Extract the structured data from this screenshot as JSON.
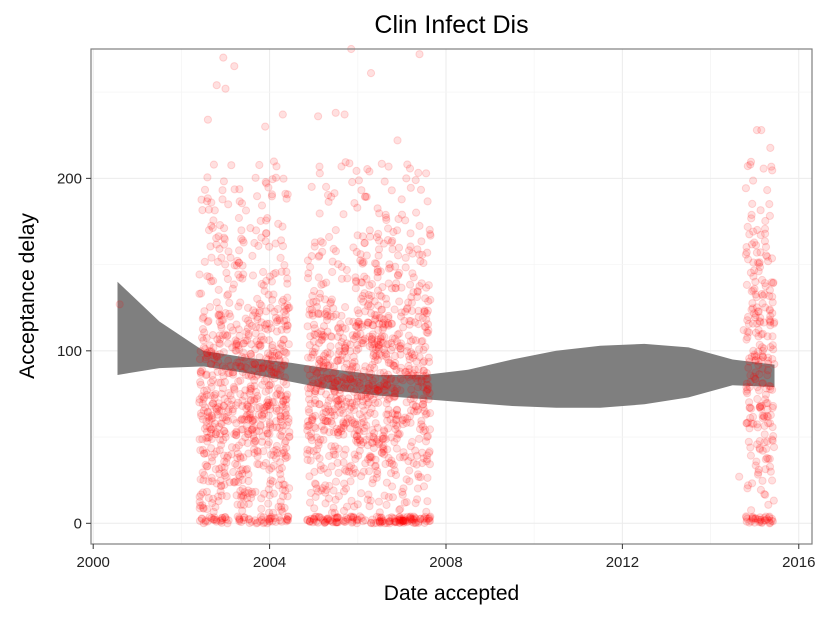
{
  "chart_data": {
    "type": "scatter",
    "title": "Clin Infect Dis",
    "xlabel": "Date accepted",
    "ylabel": "Acceptance delay",
    "xlim": [
      1999.95,
      2016.3
    ],
    "ylim": [
      -12,
      275
    ],
    "x_ticks": [
      2000,
      2004,
      2008,
      2012,
      2016
    ],
    "y_ticks": [
      0,
      100,
      200
    ],
    "grid": true,
    "point_color": "#ff0000",
    "point_alpha": 0.12,
    "band_color": "#7f7f7f",
    "clusters": [
      {
        "x_range": [
          2002.4,
          2004.45
        ],
        "y_median": 75,
        "y_spread": 40,
        "zero_fraction": 0.08
      },
      {
        "x_range": [
          2004.85,
          2007.65
        ],
        "y_median": 80,
        "y_spread": 38,
        "zero_fraction": 0.12
      },
      {
        "x_range": [
          2014.8,
          2015.45
        ],
        "y_median": 95,
        "y_spread": 40,
        "zero_fraction": 0.12
      }
    ],
    "outliers": [
      {
        "x": 2000.6,
        "y": 127
      },
      {
        "x": 2002.95,
        "y": 270
      },
      {
        "x": 2003.2,
        "y": 265
      },
      {
        "x": 2002.8,
        "y": 254
      },
      {
        "x": 2003.0,
        "y": 252
      },
      {
        "x": 2005.85,
        "y": 275
      },
      {
        "x": 2006.3,
        "y": 261
      },
      {
        "x": 2007.4,
        "y": 272
      },
      {
        "x": 2005.1,
        "y": 236
      },
      {
        "x": 2005.5,
        "y": 238
      },
      {
        "x": 2005.7,
        "y": 237
      },
      {
        "x": 2004.3,
        "y": 237
      },
      {
        "x": 2003.9,
        "y": 230
      },
      {
        "x": 2002.6,
        "y": 234
      },
      {
        "x": 2006.9,
        "y": 222
      },
      {
        "x": 2007.1,
        "y": 200
      },
      {
        "x": 2015.05,
        "y": 228
      },
      {
        "x": 2015.15,
        "y": 228
      },
      {
        "x": 2014.9,
        "y": 208
      },
      {
        "x": 2014.75,
        "y": 112
      },
      {
        "x": 2014.65,
        "y": 27
      },
      {
        "x": 2014.85,
        "y": 22
      }
    ],
    "smooth": {
      "x": [
        2000.55,
        2001.5,
        2002.5,
        2003.5,
        2004.5,
        2005.5,
        2006.5,
        2007.5,
        2008.5,
        2009.5,
        2010.5,
        2011.5,
        2012.5,
        2013.5,
        2014.5,
        2015.45
      ],
      "upper": [
        140,
        117,
        100,
        96,
        93,
        89,
        86,
        86,
        89,
        95,
        100,
        103,
        104,
        102,
        95,
        92
      ],
      "lower": [
        86,
        90,
        91,
        87,
        82,
        77,
        74,
        72,
        70,
        68,
        67,
        67,
        69,
        73,
        80,
        79
      ]
    }
  }
}
